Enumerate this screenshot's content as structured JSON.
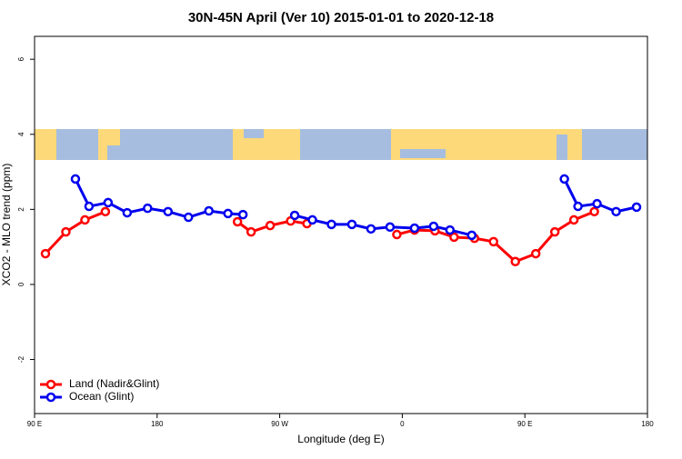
{
  "chart_data": {
    "type": "line",
    "title": "30N-45N April (Ver 10)   2015-01-01 to 2020-12-18",
    "x_label": "Longitude (deg E)",
    "y_label": "XCO2 - MLO trend (ppm)",
    "xlim": [
      90,
      540
    ],
    "ylim": [
      -3.44,
      6.61
    ],
    "xticks": [
      {
        "value": 90,
        "label": "90 E"
      },
      {
        "value": 180,
        "label": "180"
      },
      {
        "value": 270,
        "label": "90 W"
      },
      {
        "value": 360,
        "label": "0"
      },
      {
        "value": 450,
        "label": "90 E"
      },
      {
        "value": 540,
        "label": "180"
      }
    ],
    "yticks": [
      -2,
      0,
      2,
      4,
      6
    ],
    "legend": "bottom-left",
    "series": [
      {
        "name": "Land (Nadir&Glint)",
        "color": "#ff0000",
        "x": [
          98,
          113,
          127,
          142,
          null,
          239,
          249,
          263,
          278,
          290,
          null,
          356,
          369,
          384,
          398,
          413,
          427,
          443,
          458,
          472,
          486,
          501
        ],
        "values": [
          0.82,
          1.4,
          1.72,
          1.94,
          null,
          1.67,
          1.4,
          1.57,
          1.69,
          1.62,
          null,
          1.33,
          1.45,
          1.43,
          1.26,
          1.23,
          1.14,
          0.61,
          0.82,
          1.4,
          1.72,
          1.94
        ]
      },
      {
        "name": "Ocean (Glint)",
        "color": "#0000ee",
        "x": [
          120,
          130,
          144,
          158,
          173,
          188,
          203,
          218,
          232,
          243,
          null,
          281,
          294,
          308,
          323,
          337,
          351,
          369,
          383,
          395,
          411,
          null,
          479,
          489,
          503,
          517,
          532
        ],
        "values": [
          2.81,
          2.08,
          2.18,
          1.91,
          2.03,
          1.94,
          1.79,
          1.96,
          1.89,
          1.86,
          null,
          1.84,
          1.72,
          1.6,
          1.6,
          1.48,
          1.53,
          1.5,
          1.55,
          1.45,
          1.31,
          null,
          2.81,
          2.08,
          2.15,
          1.94,
          2.06
        ]
      }
    ]
  }
}
